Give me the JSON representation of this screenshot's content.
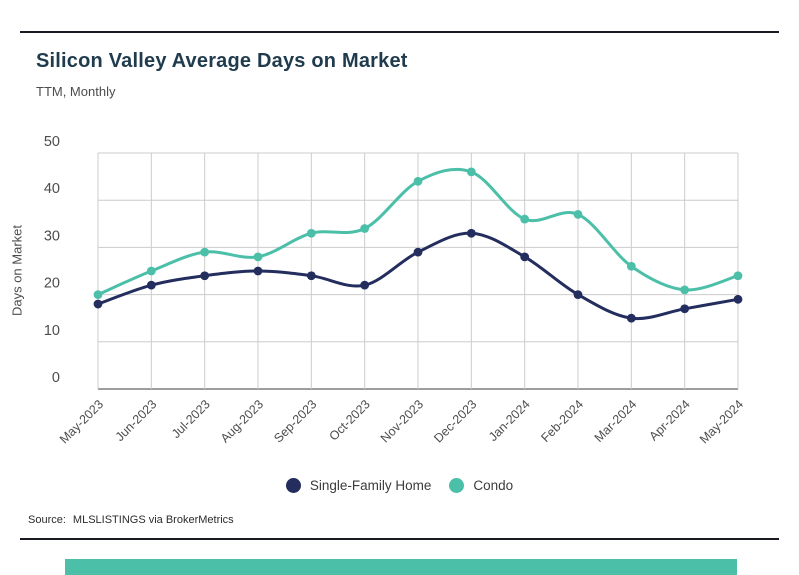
{
  "header": {
    "title": "Silicon Valley Average Days on Market",
    "subtitle": "TTM, Monthly"
  },
  "chart_data": {
    "type": "line",
    "title": "Silicon Valley Average Days on Market",
    "subtitle": "TTM, Monthly",
    "categories": [
      "May-2023",
      "Jun-2023",
      "Jul-2023",
      "Aug-2023",
      "Sep-2023",
      "Oct-2023",
      "Nov-2023",
      "Dec-2023",
      "Jan-2024",
      "Feb-2024",
      "Mar-2024",
      "Apr-2024",
      "May-2024"
    ],
    "series": [
      {
        "name": "Single-Family Home",
        "color": "#232d5e",
        "values": [
          18,
          22,
          24,
          25,
          24,
          22,
          29,
          33,
          28,
          20,
          15,
          17,
          19
        ]
      },
      {
        "name": "Condo",
        "color": "#4cbfa9",
        "values": [
          20,
          25,
          29,
          28,
          33,
          34,
          44,
          46,
          36,
          37,
          26,
          21,
          24
        ]
      }
    ],
    "xlabel": "",
    "ylabel": "Days on Market",
    "ylim": [
      0,
      50
    ],
    "yticks": [
      0,
      10,
      20,
      30,
      40,
      50
    ],
    "grid": true,
    "legend_position": "bottom"
  },
  "legend": {
    "items": [
      {
        "label": "Single-Family Home",
        "color": "#232d5e"
      },
      {
        "label": "Condo",
        "color": "#4cbfa9"
      }
    ]
  },
  "footer": {
    "source_label": "Source:",
    "source_text": "MLSLISTINGS via BrokerMetrics"
  },
  "colors": {
    "navy": "#232d5e",
    "teal": "#4cbfa9",
    "title_text": "#1f3b4d",
    "muted_text": "#4d4d4d",
    "gridline": "#cccccc",
    "axis_line": "#7d7d7d",
    "rule_line": "#191b22"
  }
}
